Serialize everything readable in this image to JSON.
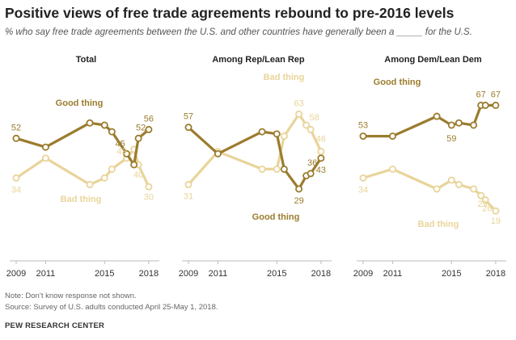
{
  "title": "Positive views of free trade agreements  rebound to pre-2016 levels",
  "subtitle": "% who say free trade agreements between the U.S. and other countries have generally been a _____ for the U.S.",
  "notes": {
    "note": "Note: Don’t know response not shown.",
    "source": "Source: Survey of U.S. adults conducted April 25-May 1, 2018.",
    "org": "PEW RESEARCH CENTER"
  },
  "colors": {
    "good": "#9b7c2e",
    "bad": "#e9d49a",
    "axis": "#bbbbbb"
  },
  "chart_data": [
    {
      "type": "line",
      "title": "Total",
      "xlim": [
        2009,
        2018.5
      ],
      "ylim": [
        0,
        80
      ],
      "tick_labels": [
        "2009",
        "2011",
        "2015",
        "2018"
      ],
      "series": [
        {
          "name": "Good thing",
          "x": [
            2009,
            2011,
            2014,
            2015,
            2015.5,
            2016.5,
            2017,
            2017.3,
            2018
          ],
          "values": [
            52,
            48,
            59,
            58,
            55,
            45,
            40,
            52,
            56
          ]
        },
        {
          "name": "Bad thing",
          "x": [
            2009,
            2011,
            2014,
            2015,
            2015.5,
            2016.5,
            2017,
            2017.3,
            2018
          ],
          "values": [
            34,
            43,
            31,
            34,
            38,
            43,
            47,
            40,
            30
          ]
        }
      ],
      "data_labels": [
        "52",
        "56",
        "45",
        "52",
        "34",
        "43",
        "40",
        "30"
      ],
      "series_labels": [
        "Good thing",
        "Bad thing"
      ]
    },
    {
      "type": "line",
      "title": "Among Rep/Lean Rep",
      "xlim": [
        2009,
        2018.5
      ],
      "ylim": [
        0,
        80
      ],
      "tick_labels": [
        "2009",
        "2011",
        "2015",
        "2018"
      ],
      "series": [
        {
          "name": "Good thing",
          "x": [
            2009,
            2011,
            2014,
            2015,
            2015.5,
            2016.5,
            2017,
            2017.3,
            2018
          ],
          "values": [
            57,
            45,
            55,
            54,
            38,
            29,
            35,
            36,
            43
          ]
        },
        {
          "name": "Bad thing",
          "x": [
            2009,
            2011,
            2014,
            2015,
            2015.5,
            2016.5,
            2017,
            2017.3,
            2018
          ],
          "values": [
            31,
            46,
            38,
            38,
            53,
            63,
            58,
            56,
            46
          ]
        }
      ],
      "data_labels": [
        "57",
        "29",
        "36",
        "43",
        "31",
        "63",
        "58",
        "46"
      ],
      "series_labels": [
        "Bad thing",
        "Good thing"
      ]
    },
    {
      "type": "line",
      "title": "Among Dem/Lean Dem",
      "xlim": [
        2009,
        2018.5
      ],
      "ylim": [
        0,
        80
      ],
      "tick_labels": [
        "2009",
        "2011",
        "2015",
        "2018"
      ],
      "series": [
        {
          "name": "Good thing",
          "x": [
            2009,
            2011,
            2014,
            2015,
            2015.5,
            2016.5,
            2017,
            2017.3,
            2018
          ],
          "values": [
            53,
            53,
            62,
            58,
            59,
            58,
            67,
            67,
            67
          ]
        },
        {
          "name": "Bad thing",
          "x": [
            2009,
            2011,
            2014,
            2015,
            2015.5,
            2016.5,
            2017,
            2017.3,
            2018
          ],
          "values": [
            34,
            38,
            29,
            33,
            31,
            29,
            26,
            24,
            19
          ]
        }
      ],
      "data_labels": [
        "53",
        "67",
        "67",
        "59",
        "34",
        "29",
        "26",
        "19"
      ],
      "series_labels": [
        "Good thing",
        "Bad thing"
      ]
    }
  ]
}
